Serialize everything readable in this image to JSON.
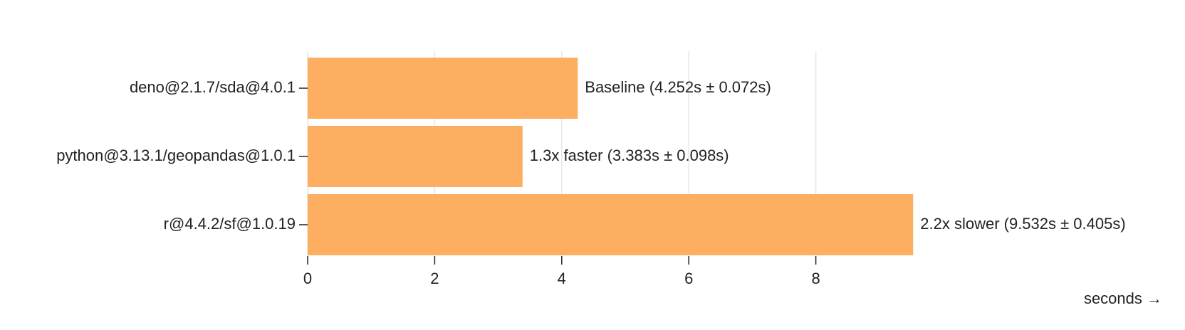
{
  "chart_data": {
    "type": "bar",
    "orientation": "horizontal",
    "categories": [
      "deno@2.1.7/sda@4.0.1",
      "python@3.13.1/geopandas@1.0.1",
      "r@4.4.2/sf@1.0.19"
    ],
    "values": [
      4.252,
      3.383,
      9.532
    ],
    "data_labels": [
      "Baseline (4.252s ± 0.072s)",
      "1.3x faster (3.383s ± 0.098s)",
      "2.2x slower (9.532s ± 0.405s)"
    ],
    "x_ticks": [
      0,
      2,
      4,
      6,
      8
    ],
    "xlim": [
      0,
      10
    ],
    "xlabel": "seconds →",
    "ylabel": "",
    "title": "",
    "grid": "vertical",
    "legend": "none",
    "bar_color": "#fdae61"
  }
}
